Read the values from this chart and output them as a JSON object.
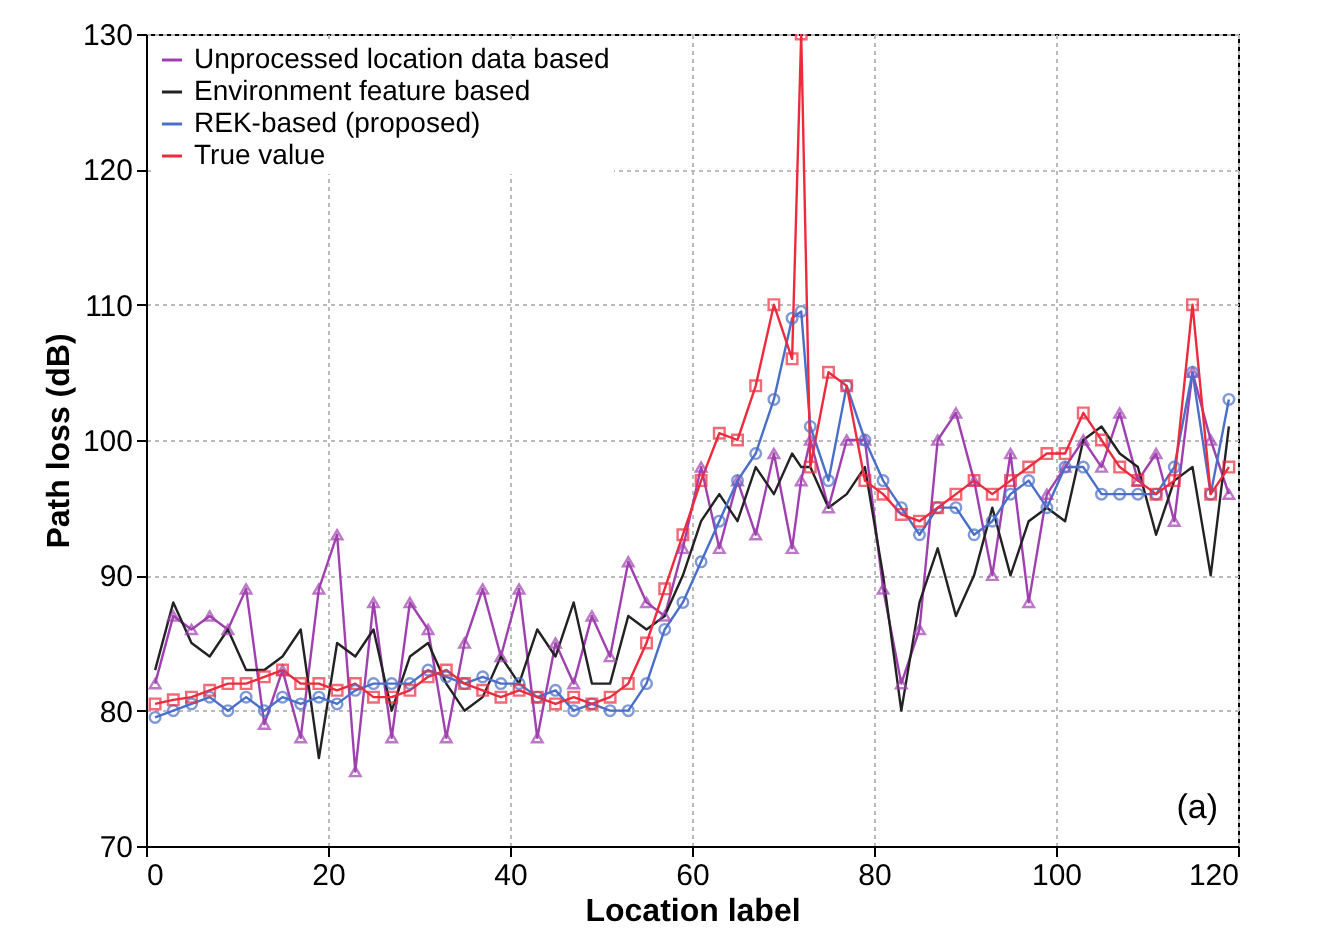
{
  "chart_data": {
    "type": "line",
    "xlabel": "Location label",
    "ylabel": "Path loss (dB)",
    "x": [
      1,
      3,
      5,
      7,
      9,
      11,
      13,
      15,
      17,
      19,
      21,
      23,
      25,
      27,
      29,
      31,
      33,
      35,
      37,
      39,
      41,
      43,
      45,
      47,
      49,
      51,
      53,
      55,
      57,
      59,
      61,
      63,
      65,
      67,
      69,
      71,
      72,
      73,
      75,
      77,
      79,
      81,
      83,
      85,
      87,
      89,
      91,
      93,
      95,
      97,
      99,
      101,
      103,
      105,
      107,
      109,
      111,
      113,
      115,
      117,
      119
    ],
    "series": [
      {
        "name": "Unprocessed location data based",
        "color": "#a040b0",
        "marker": "triangle",
        "values": [
          82,
          87,
          86,
          87,
          86,
          89,
          79,
          83,
          78,
          89,
          93,
          75.5,
          88,
          78,
          88,
          86,
          78,
          85,
          89,
          84,
          89,
          78,
          85,
          82,
          87,
          84,
          91,
          88,
          87,
          92,
          98,
          92,
          97,
          93,
          99,
          92,
          97,
          100,
          95,
          100,
          100,
          89,
          82,
          86,
          100,
          102,
          97,
          90,
          99,
          88,
          96,
          98,
          100,
          98,
          102,
          97,
          99,
          94,
          105,
          100,
          96
        ]
      },
      {
        "name": "Environment feature based",
        "color": "#222222",
        "marker": "none",
        "values": [
          83,
          88,
          85,
          84,
          86,
          83,
          83,
          84,
          86,
          76.5,
          85,
          84,
          86,
          80,
          84,
          85,
          82,
          80,
          81,
          84,
          82,
          86,
          84,
          88,
          82,
          82,
          87,
          86,
          87,
          90,
          94,
          96,
          94,
          98,
          96,
          99,
          98,
          98,
          95,
          96,
          98,
          90,
          80,
          88,
          92,
          87,
          90,
          95,
          90,
          94,
          95,
          94,
          100,
          101,
          99,
          98,
          93,
          97,
          98,
          90,
          101
        ]
      },
      {
        "name": "REK-based (proposed)",
        "color": "#4a6fc8",
        "marker": "circle",
        "values": [
          79.5,
          80,
          80.5,
          81,
          80,
          81,
          80,
          81,
          80.5,
          81,
          80.5,
          81.5,
          82,
          82,
          82,
          83,
          82.5,
          82,
          82.5,
          82,
          82,
          81,
          81.5,
          80,
          80.5,
          80,
          80,
          82,
          86,
          88,
          91,
          94,
          97,
          99,
          103,
          109,
          109.5,
          101,
          97,
          104,
          100,
          97,
          95,
          93,
          95,
          95,
          93,
          94,
          96,
          97,
          95,
          98,
          98,
          96,
          96,
          96,
          96,
          98,
          105,
          96,
          103
        ]
      },
      {
        "name": "True value",
        "color": "#ee2b3c",
        "marker": "square",
        "values": [
          80.5,
          80.8,
          81,
          81.5,
          82,
          82,
          82.5,
          83,
          82,
          82,
          81.5,
          82,
          81,
          81,
          81.5,
          82.5,
          83,
          82,
          81.5,
          81,
          81.5,
          81,
          80.5,
          81,
          80.5,
          81,
          82,
          85,
          89,
          93,
          97,
          100.5,
          100,
          104,
          110,
          106,
          130,
          98,
          105,
          104,
          97,
          96,
          94.5,
          94,
          95,
          96,
          97,
          96,
          97,
          98,
          99,
          99,
          102,
          100,
          98,
          97,
          96,
          97,
          110,
          96,
          98
        ]
      }
    ],
    "xlim": [
      0,
      120
    ],
    "xticks": [
      0,
      20,
      40,
      60,
      80,
      100,
      120
    ],
    "ylim": [
      70,
      130
    ],
    "yticks": [
      70,
      80,
      90,
      100,
      110,
      120,
      130
    ],
    "grid": true,
    "legend": "top left",
    "line_style": "solid",
    "annotations": [
      "(a)"
    ]
  }
}
